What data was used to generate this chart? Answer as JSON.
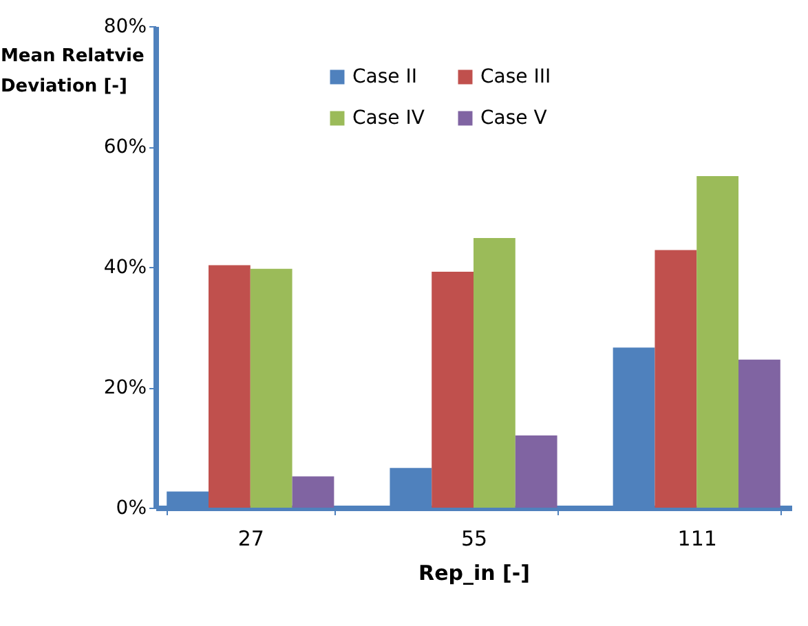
{
  "chart_data": {
    "type": "bar",
    "xlabel": "Rep_in [-]",
    "ylabel": "Mean Relatvie Deviation [-]",
    "categories": [
      "27",
      "55",
      "111"
    ],
    "series": [
      {
        "name": "Case II",
        "color": "#4f81bd",
        "values": [
          2.7,
          6.6,
          26.6
        ]
      },
      {
        "name": "Case III",
        "color": "#c0504d",
        "values": [
          40.3,
          39.2,
          42.8
        ]
      },
      {
        "name": "Case IV",
        "color": "#9bbb59",
        "values": [
          39.7,
          44.8,
          55.1
        ]
      },
      {
        "name": "Case V",
        "color": "#8064a2",
        "values": [
          5.2,
          12.0,
          24.6
        ]
      }
    ],
    "ylim": [
      0,
      80
    ],
    "yticks": [
      {
        "value": 0,
        "label": "0%"
      },
      {
        "value": 20,
        "label": "20%"
      },
      {
        "value": 40,
        "label": "40%"
      },
      {
        "value": 60,
        "label": "60%"
      },
      {
        "value": 80,
        "label": "80%"
      }
    ],
    "grid": false,
    "legend": "top"
  }
}
